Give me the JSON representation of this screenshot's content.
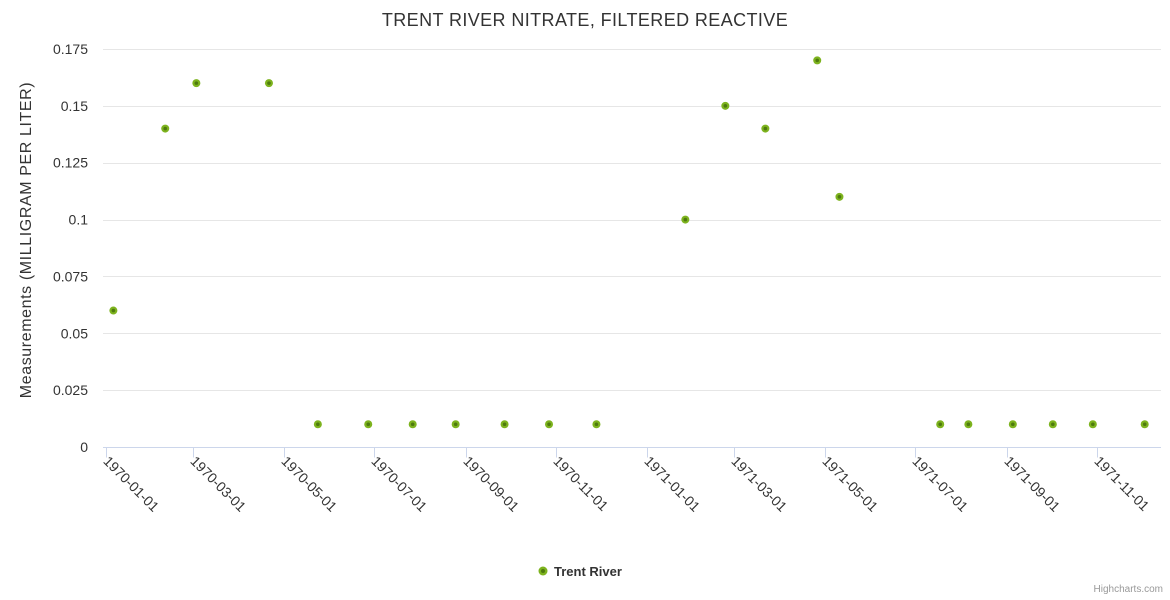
{
  "chart": {
    "title": "TRENT RIVER NITRATE, FILTERED REACTIVE",
    "credits": "Highcharts.com"
  },
  "legend": {
    "items": [
      {
        "label": "Trent River",
        "color": "#7db31e",
        "marker_inner_color": "#4e7a0e"
      }
    ]
  },
  "colors": {
    "grid": "#e6e6e6",
    "axis_line": "#ccd6eb",
    "text": "#333333",
    "credits": "#999999"
  },
  "chart_data": {
    "type": "scatter",
    "title": "TRENT RIVER NITRATE, FILTERED REACTIVE",
    "xlabel": "",
    "ylabel": "Measurements (MILLIGRAM PER LITER)",
    "ylim": [
      0,
      0.175
    ],
    "y_ticks": [
      0,
      0.025,
      0.05,
      0.075,
      0.1,
      0.125,
      0.15,
      0.175
    ],
    "y_tick_labels": [
      "0",
      "0.025",
      "0.05",
      "0.075",
      "0.1",
      "0.125",
      "0.15",
      "0.175"
    ],
    "x_ticks": [
      "1970-01-01",
      "1970-03-01",
      "1970-05-01",
      "1970-07-01",
      "1970-09-01",
      "1970-11-01",
      "1971-01-01",
      "1971-03-01",
      "1971-05-01",
      "1971-07-01",
      "1971-09-01",
      "1971-11-01"
    ],
    "x_range": [
      "1969-12-30",
      "1971-12-14"
    ],
    "grid": true,
    "legend_position": "bottom-center",
    "series": [
      {
        "name": "Trent River",
        "color": "#7db31e",
        "marker_inner_color": "#4e7a0e",
        "points": [
          [
            "1970-01-06",
            0.06
          ],
          [
            "1970-02-10",
            0.14
          ],
          [
            "1970-03-03",
            0.16
          ],
          [
            "1970-04-21",
            0.16
          ],
          [
            "1970-05-24",
            0.01
          ],
          [
            "1970-06-27",
            0.01
          ],
          [
            "1970-07-27",
            0.01
          ],
          [
            "1970-08-25",
            0.01
          ],
          [
            "1970-09-27",
            0.01
          ],
          [
            "1970-10-27",
            0.01
          ],
          [
            "1970-11-28",
            0.01
          ],
          [
            "1971-01-27",
            0.1
          ],
          [
            "1971-02-23",
            0.15
          ],
          [
            "1971-03-22",
            0.14
          ],
          [
            "1971-04-26",
            0.17
          ],
          [
            "1971-05-11",
            0.11
          ],
          [
            "1971-07-18",
            0.01
          ],
          [
            "1971-08-06",
            0.01
          ],
          [
            "1971-09-05",
            0.01
          ],
          [
            "1971-10-02",
            0.01
          ],
          [
            "1971-10-29",
            0.01
          ],
          [
            "1971-12-03",
            0.01
          ]
        ]
      }
    ]
  }
}
